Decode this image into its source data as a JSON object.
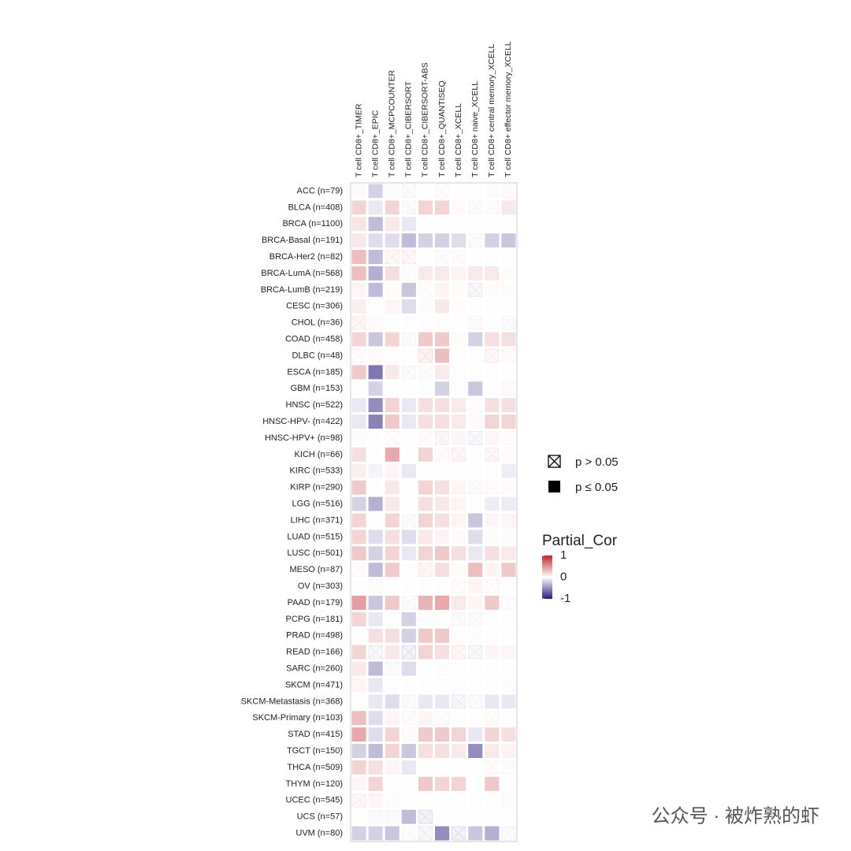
{
  "chart_data": {
    "type": "heatmap",
    "x": [
      "T cell CD8+_TIMER",
      "T cell CD8+_EPIC",
      "T cell CD8+_MCPCOUNTER",
      "T cell CD8+_CIBERSORT",
      "T cell CD8+_CIBERSORT-ABS",
      "T cell CD8+_QUANTISEQ",
      "T cell CD8+_XCELL",
      "T cell CD8+ naive_XCELL",
      "T cell CD8+ central memory_XCELL",
      "T cell CD8+ effector memory_XCELL"
    ],
    "y": [
      "ACC (n=79)",
      "BLCA (n=408)",
      "BRCA (n=1100)",
      "BRCA-Basal (n=191)",
      "BRCA-Her2 (n=82)",
      "BRCA-LumA (n=568)",
      "BRCA-LumB (n=219)",
      "CESC (n=306)",
      "CHOL (n=36)",
      "COAD (n=458)",
      "DLBC (n=48)",
      "ESCA (n=185)",
      "GBM (n=153)",
      "HNSC (n=522)",
      "HNSC-HPV- (n=422)",
      "HNSC-HPV+ (n=98)",
      "KICH (n=66)",
      "KIRC (n=533)",
      "KIRP (n=290)",
      "LGG (n=516)",
      "LIHC (n=371)",
      "LUAD (n=515)",
      "LUSC (n=501)",
      "MESO (n=87)",
      "OV (n=303)",
      "PAAD (n=179)",
      "PCPG (n=181)",
      "PRAD (n=498)",
      "READ (n=166)",
      "SARC (n=260)",
      "SKCM (n=471)",
      "SKCM-Metastasis (n=368)",
      "SKCM-Primary (n=103)",
      "STAD (n=415)",
      "TGCT (n=150)",
      "THCA (n=509)",
      "THYM (n=120)",
      "UCEC (n=545)",
      "UCS (n=57)",
      "UVM (n=80)"
    ],
    "values": [
      [
        0.03,
        -0.2,
        -0.03,
        -0.05,
        0.01,
        0.05,
        0.01,
        0.01,
        0.02,
        0.05
      ],
      [
        0.2,
        -0.1,
        0.2,
        -0.05,
        0.2,
        0.2,
        0.02,
        -0.05,
        0.05,
        0.1
      ],
      [
        0.12,
        -0.3,
        0.1,
        -0.1,
        0.01,
        0.01,
        0.01,
        0.01,
        0.01,
        0.01
      ],
      [
        0.1,
        -0.15,
        -0.15,
        -0.3,
        -0.2,
        -0.2,
        -0.15,
        -0.05,
        -0.2,
        -0.25
      ],
      [
        0.3,
        -0.3,
        0.1,
        0.1,
        0.01,
        0.05,
        0.05,
        0.01,
        0.01,
        0.01
      ],
      [
        0.3,
        -0.35,
        0.15,
        -0.03,
        0.1,
        0.1,
        0.05,
        0.1,
        0.1,
        0.02
      ],
      [
        0.05,
        -0.3,
        0.02,
        -0.25,
        -0.03,
        0.05,
        0.02,
        -0.1,
        0.02,
        0.02
      ],
      [
        0.08,
        0.02,
        0.05,
        -0.15,
        0.02,
        0.1,
        0.02,
        0.01,
        0.01,
        0.01
      ],
      [
        0.1,
        0.05,
        0.01,
        0.01,
        0.01,
        0.01,
        0.01,
        -0.05,
        0.01,
        -0.05
      ],
      [
        0.2,
        -0.25,
        0.2,
        -0.05,
        0.25,
        0.25,
        0.02,
        -0.2,
        0.15,
        0.15
      ],
      [
        0.05,
        0.05,
        0.02,
        0.01,
        0.15,
        0.3,
        0.01,
        0.01,
        0.1,
        0.05
      ],
      [
        0.25,
        -0.6,
        0.1,
        -0.05,
        0.05,
        0.1,
        0.01,
        0.01,
        0.01,
        0.01
      ],
      [
        0.01,
        -0.2,
        0.01,
        0.01,
        0.01,
        -0.2,
        0.01,
        -0.25,
        0.01,
        0.05
      ],
      [
        -0.1,
        -0.5,
        0.2,
        -0.1,
        0.15,
        0.15,
        0.1,
        -0.03,
        0.15,
        0.15
      ],
      [
        -0.1,
        -0.55,
        0.25,
        -0.1,
        0.15,
        0.15,
        0.1,
        0.03,
        0.2,
        0.2
      ],
      [
        -0.03,
        0.01,
        0.05,
        0.02,
        0.05,
        0.1,
        0.05,
        -0.1,
        0.05,
        0.02
      ],
      [
        0.15,
        0.01,
        0.4,
        0.01,
        0.2,
        0.05,
        0.1,
        0.01,
        0.1,
        0.02
      ],
      [
        0.08,
        -0.05,
        0.05,
        -0.1,
        0.01,
        0.01,
        0.01,
        0.01,
        0.01,
        -0.08
      ],
      [
        0.25,
        0.01,
        0.1,
        0.01,
        0.2,
        0.15,
        0.05,
        -0.05,
        0.05,
        0.05
      ],
      [
        -0.2,
        -0.35,
        0.1,
        0.01,
        0.15,
        0.1,
        0.05,
        0.01,
        -0.08,
        -0.08
      ],
      [
        0.2,
        0.01,
        0.2,
        -0.05,
        0.2,
        0.15,
        0.05,
        -0.25,
        0.05,
        0.05
      ],
      [
        0.2,
        -0.15,
        0.15,
        -0.15,
        0.1,
        0.05,
        0.03,
        -0.15,
        0.02,
        0.02
      ],
      [
        0.25,
        -0.2,
        0.2,
        -0.1,
        0.2,
        0.25,
        0.15,
        -0.1,
        0.15,
        0.1
      ],
      [
        0.05,
        -0.3,
        0.25,
        0.01,
        0.1,
        0.15,
        0.02,
        0.3,
        0.05,
        0.25
      ],
      [
        0.01,
        -0.03,
        0.01,
        0.01,
        0.01,
        0.01,
        0.05,
        0.05,
        0.05,
        0.01
      ],
      [
        0.45,
        -0.25,
        0.25,
        -0.05,
        0.35,
        0.4,
        0.1,
        0.05,
        0.25,
        0.05
      ],
      [
        0.2,
        -0.1,
        0.01,
        -0.2,
        0.01,
        0.01,
        -0.05,
        -0.05,
        0.01,
        0.01
      ],
      [
        0.01,
        0.15,
        0.15,
        -0.2,
        0.25,
        0.25,
        0.01,
        -0.03,
        0.01,
        0.01
      ],
      [
        0.2,
        -0.1,
        0.1,
        -0.15,
        0.2,
        0.15,
        0.1,
        -0.1,
        0.05,
        0.05
      ],
      [
        0.1,
        -0.3,
        -0.05,
        -0.15,
        0.01,
        -0.03,
        0.01,
        0.01,
        0.01,
        0.01
      ],
      [
        0.05,
        -0.1,
        0.01,
        0.01,
        0.01,
        0.01,
        0.01,
        0.01,
        0.01,
        0.03
      ],
      [
        0.01,
        -0.1,
        -0.15,
        -0.05,
        -0.1,
        -0.1,
        -0.1,
        -0.05,
        -0.1,
        -0.1
      ],
      [
        0.3,
        -0.15,
        0.05,
        0.05,
        0.05,
        0.05,
        0.01,
        0.01,
        0.05,
        0.01
      ],
      [
        0.4,
        -0.15,
        0.2,
        0.05,
        0.25,
        0.25,
        0.2,
        -0.1,
        0.2,
        0.15
      ],
      [
        -0.2,
        -0.3,
        0.2,
        -0.25,
        0.15,
        0.15,
        0.1,
        -0.5,
        0.1,
        0.05
      ],
      [
        0.2,
        0.15,
        0.05,
        -0.1,
        0.01,
        0.01,
        0.01,
        0.02,
        0.05,
        0.05
      ],
      [
        0.05,
        0.2,
        0.01,
        0.01,
        0.25,
        0.2,
        0.2,
        0.01,
        0.25,
        0.01
      ],
      [
        0.1,
        0.05,
        0.02,
        0.01,
        0.01,
        0.01,
        0.01,
        0.01,
        0.01,
        0.05
      ],
      [
        0.01,
        -0.05,
        -0.05,
        -0.3,
        -0.15,
        0.01,
        0.01,
        0.01,
        0.01,
        0.01
      ],
      [
        -0.2,
        -0.2,
        -0.25,
        0.05,
        -0.1,
        -0.5,
        -0.15,
        -0.25,
        -0.35,
        -0.05
      ]
    ],
    "significant": [
      [
        1,
        1,
        0,
        0,
        1,
        0,
        1,
        1,
        1,
        0
      ],
      [
        1,
        1,
        1,
        0,
        1,
        1,
        1,
        0,
        0,
        1
      ],
      [
        1,
        1,
        1,
        1,
        1,
        1,
        1,
        1,
        1,
        1
      ],
      [
        1,
        1,
        1,
        1,
        1,
        1,
        1,
        0,
        1,
        1
      ],
      [
        1,
        1,
        0,
        0,
        1,
        0,
        0,
        1,
        1,
        1
      ],
      [
        1,
        1,
        1,
        0,
        1,
        1,
        1,
        1,
        1,
        1
      ],
      [
        1,
        1,
        1,
        1,
        0,
        1,
        1,
        0,
        1,
        1
      ],
      [
        1,
        0,
        1,
        1,
        1,
        1,
        1,
        1,
        1,
        1
      ],
      [
        0,
        0,
        1,
        1,
        1,
        1,
        1,
        0,
        1,
        0
      ],
      [
        1,
        1,
        1,
        0,
        1,
        1,
        1,
        1,
        1,
        1
      ],
      [
        0,
        0,
        0,
        1,
        0,
        1,
        1,
        1,
        0,
        0
      ],
      [
        1,
        1,
        1,
        0,
        0,
        1,
        1,
        1,
        1,
        1
      ],
      [
        1,
        1,
        0,
        1,
        1,
        1,
        1,
        1,
        1,
        0
      ],
      [
        1,
        1,
        1,
        1,
        1,
        1,
        1,
        0,
        1,
        1
      ],
      [
        1,
        1,
        1,
        1,
        1,
        1,
        1,
        1,
        1,
        1
      ],
      [
        0,
        1,
        0,
        0,
        0,
        0,
        1,
        0,
        1,
        1
      ],
      [
        1,
        1,
        1,
        1,
        1,
        0,
        0,
        1,
        0,
        1
      ],
      [
        1,
        1,
        1,
        1,
        1,
        1,
        1,
        0,
        1,
        1
      ],
      [
        1,
        1,
        1,
        1,
        1,
        1,
        1,
        0,
        0,
        0
      ],
      [
        1,
        1,
        1,
        1,
        1,
        1,
        1,
        1,
        1,
        1
      ],
      [
        1,
        1,
        1,
        0,
        1,
        1,
        1,
        1,
        1,
        1
      ],
      [
        1,
        1,
        1,
        1,
        1,
        1,
        1,
        1,
        1,
        1
      ],
      [
        1,
        1,
        1,
        1,
        1,
        1,
        1,
        1,
        1,
        1
      ],
      [
        0,
        1,
        1,
        1,
        0,
        1,
        1,
        1,
        1,
        1
      ],
      [
        1,
        0,
        1,
        1,
        1,
        1,
        0,
        1,
        0,
        1
      ],
      [
        1,
        1,
        1,
        0,
        1,
        1,
        1,
        1,
        1,
        0
      ],
      [
        1,
        1,
        1,
        1,
        1,
        1,
        0,
        0,
        1,
        1
      ],
      [
        1,
        1,
        1,
        1,
        1,
        1,
        1,
        0,
        1,
        1
      ],
      [
        1,
        0,
        1,
        0,
        1,
        1,
        0,
        0,
        1,
        1
      ],
      [
        1,
        1,
        0,
        1,
        0,
        0,
        1,
        1,
        1,
        1
      ],
      [
        1,
        1,
        1,
        1,
        1,
        1,
        1,
        1,
        1,
        0
      ],
      [
        1,
        1,
        1,
        0,
        1,
        1,
        0,
        0,
        1,
        1
      ],
      [
        1,
        1,
        1,
        0,
        1,
        0,
        1,
        1,
        0,
        1
      ],
      [
        1,
        1,
        1,
        0,
        1,
        1,
        1,
        1,
        1,
        1
      ],
      [
        1,
        1,
        1,
        1,
        1,
        1,
        1,
        1,
        1,
        1
      ],
      [
        1,
        1,
        1,
        1,
        1,
        1,
        1,
        0,
        0,
        0
      ],
      [
        1,
        1,
        1,
        1,
        1,
        1,
        1,
        1,
        1,
        1
      ],
      [
        0,
        1,
        1,
        1,
        1,
        1,
        1,
        1,
        1,
        0
      ],
      [
        1,
        0,
        0,
        1,
        0,
        1,
        1,
        1,
        1,
        1
      ],
      [
        1,
        1,
        1,
        0,
        0,
        1,
        0,
        1,
        1,
        0
      ]
    ],
    "zlim": [
      -1,
      1
    ],
    "colors": [
      "#2b1b7c",
      "#ffffff",
      "#c2272d"
    ],
    "p_legend": [
      "p > 0.05",
      "p ≤ 0.05"
    ],
    "colorbar_title": "Partial_Cor",
    "colorbar_ticks": [
      1,
      0,
      -1
    ],
    "watermark": "公众号 · 被炸熟的虾"
  }
}
